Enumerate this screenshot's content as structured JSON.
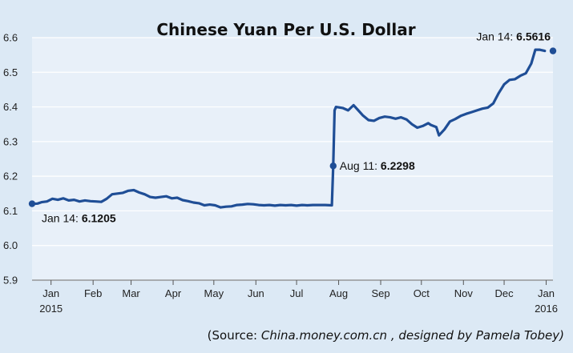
{
  "colors": {
    "background": "#dce9f5",
    "plot_background": "#e8f0f9",
    "series": "#1f4e96",
    "grid": "#ffffff"
  },
  "chart_data": {
    "type": "line",
    "title": "Chinese Yuan Per U.S. Dollar",
    "xlabel": "",
    "ylabel": "",
    "ylim": [
      5.9,
      6.6
    ],
    "y_ticks": [
      "5.9",
      "6.0",
      "6.1",
      "6.2",
      "6.3",
      "6.4",
      "6.5",
      "6.6"
    ],
    "x_range": [
      "2015-01-01",
      "2016-01-20"
    ],
    "x_ticks": [
      {
        "label": "Jan",
        "date": "2015-01-15"
      },
      {
        "label": "Feb",
        "date": "2015-02-15"
      },
      {
        "label": "Mar",
        "date": "2015-03-15"
      },
      {
        "label": "Apr",
        "date": "2015-04-15"
      },
      {
        "label": "May",
        "date": "2015-05-15"
      },
      {
        "label": "Jun",
        "date": "2015-06-15"
      },
      {
        "label": "Jul",
        "date": "2015-07-15"
      },
      {
        "label": "Aug",
        "date": "2015-08-15"
      },
      {
        "label": "Sep",
        "date": "2015-09-15"
      },
      {
        "label": "Oct",
        "date": "2015-10-15"
      },
      {
        "label": "Nov",
        "date": "2015-11-15"
      },
      {
        "label": "Dec",
        "date": "2015-12-15"
      },
      {
        "label": "Jan",
        "date": "2016-01-15"
      }
    ],
    "year_labels": [
      {
        "label": "2015",
        "date": "2015-01-15"
      },
      {
        "label": "2016",
        "date": "2016-01-15"
      }
    ],
    "grid": true,
    "series": [
      {
        "points": [
          [
            "2015-01-01",
            6.12
          ],
          [
            "2015-01-05",
            6.121
          ],
          [
            "2015-01-08",
            6.125
          ],
          [
            "2015-01-12",
            6.127
          ],
          [
            "2015-01-16",
            6.135
          ],
          [
            "2015-01-20",
            6.132
          ],
          [
            "2015-01-24",
            6.136
          ],
          [
            "2015-01-28",
            6.13
          ],
          [
            "2015-02-01",
            6.132
          ],
          [
            "2015-02-05",
            6.127
          ],
          [
            "2015-02-09",
            6.13
          ],
          [
            "2015-02-13",
            6.128
          ],
          [
            "2015-02-17",
            6.127
          ],
          [
            "2015-02-21",
            6.126
          ],
          [
            "2015-02-25",
            6.135
          ],
          [
            "2015-03-01",
            6.148
          ],
          [
            "2015-03-05",
            6.15
          ],
          [
            "2015-03-09",
            6.152
          ],
          [
            "2015-03-13",
            6.158
          ],
          [
            "2015-03-17",
            6.16
          ],
          [
            "2015-03-21",
            6.153
          ],
          [
            "2015-03-25",
            6.148
          ],
          [
            "2015-03-29",
            6.14
          ],
          [
            "2015-04-02",
            6.138
          ],
          [
            "2015-04-06",
            6.14
          ],
          [
            "2015-04-10",
            6.142
          ],
          [
            "2015-04-14",
            6.136
          ],
          [
            "2015-04-18",
            6.138
          ],
          [
            "2015-04-22",
            6.131
          ],
          [
            "2015-04-26",
            6.128
          ],
          [
            "2015-04-30",
            6.124
          ],
          [
            "2015-05-04",
            6.122
          ],
          [
            "2015-05-08",
            6.116
          ],
          [
            "2015-05-12",
            6.118
          ],
          [
            "2015-05-16",
            6.116
          ],
          [
            "2015-05-20",
            6.11
          ],
          [
            "2015-05-24",
            6.112
          ],
          [
            "2015-05-28",
            6.113
          ],
          [
            "2015-06-01",
            6.117
          ],
          [
            "2015-06-05",
            6.118
          ],
          [
            "2015-06-09",
            6.12
          ],
          [
            "2015-06-13",
            6.119
          ],
          [
            "2015-06-17",
            6.117
          ],
          [
            "2015-06-21",
            6.116
          ],
          [
            "2015-06-25",
            6.117
          ],
          [
            "2015-06-29",
            6.115
          ],
          [
            "2015-07-03",
            6.117
          ],
          [
            "2015-07-07",
            6.116
          ],
          [
            "2015-07-11",
            6.117
          ],
          [
            "2015-07-15",
            6.115
          ],
          [
            "2015-07-19",
            6.117
          ],
          [
            "2015-07-23",
            6.116
          ],
          [
            "2015-07-27",
            6.117
          ],
          [
            "2015-07-31",
            6.117
          ],
          [
            "2015-08-05",
            6.117
          ],
          [
            "2015-08-10",
            6.116
          ],
          [
            "2015-08-11",
            6.2298
          ],
          [
            "2015-08-12",
            6.39
          ],
          [
            "2015-08-13",
            6.4
          ],
          [
            "2015-08-18",
            6.397
          ],
          [
            "2015-08-22",
            6.39
          ],
          [
            "2015-08-26",
            6.405
          ],
          [
            "2015-08-29",
            6.392
          ],
          [
            "2015-09-02",
            6.375
          ],
          [
            "2015-09-06",
            6.362
          ],
          [
            "2015-09-10",
            6.36
          ],
          [
            "2015-09-14",
            6.368
          ],
          [
            "2015-09-18",
            6.372
          ],
          [
            "2015-09-22",
            6.37
          ],
          [
            "2015-09-26",
            6.366
          ],
          [
            "2015-09-30",
            6.37
          ],
          [
            "2015-10-04",
            6.364
          ],
          [
            "2015-10-08",
            6.35
          ],
          [
            "2015-10-12",
            6.34
          ],
          [
            "2015-10-16",
            6.345
          ],
          [
            "2015-10-20",
            6.353
          ],
          [
            "2015-10-22",
            6.348
          ],
          [
            "2015-10-26",
            6.342
          ],
          [
            "2015-10-28",
            6.318
          ],
          [
            "2015-11-01",
            6.335
          ],
          [
            "2015-11-05",
            6.358
          ],
          [
            "2015-11-09",
            6.365
          ],
          [
            "2015-11-13",
            6.374
          ],
          [
            "2015-11-17",
            6.38
          ],
          [
            "2015-11-21",
            6.385
          ],
          [
            "2015-11-25",
            6.39
          ],
          [
            "2015-11-29",
            6.395
          ],
          [
            "2015-12-03",
            6.398
          ],
          [
            "2015-12-07",
            6.41
          ],
          [
            "2015-12-11",
            6.44
          ],
          [
            "2015-12-15",
            6.465
          ],
          [
            "2015-12-19",
            6.478
          ],
          [
            "2015-12-23",
            6.48
          ],
          [
            "2015-12-27",
            6.49
          ],
          [
            "2015-12-31",
            6.497
          ],
          [
            "2016-01-04",
            6.525
          ],
          [
            "2016-01-07",
            6.565
          ],
          [
            "2016-01-10",
            6.565
          ],
          [
            "2016-01-14",
            6.5616
          ]
        ]
      }
    ],
    "annotations": [
      {
        "date": "2015-01-01",
        "value": 6.1205,
        "prefix": "Jan 14: ",
        "value_text": "6.1205",
        "anchor": "below-right"
      },
      {
        "date": "2015-08-11",
        "value": 6.2298,
        "prefix": "Aug 11: ",
        "value_text": "6.2298",
        "anchor": "right"
      },
      {
        "date": "2016-01-20",
        "value": 6.5616,
        "prefix": "Jan 14: ",
        "value_text": "6.5616",
        "anchor": "above-left"
      }
    ],
    "source": {
      "prefix": "(Source: ",
      "site": "China.money.com.cn",
      "suffix": ", designed by Pamela Tobey)"
    }
  }
}
